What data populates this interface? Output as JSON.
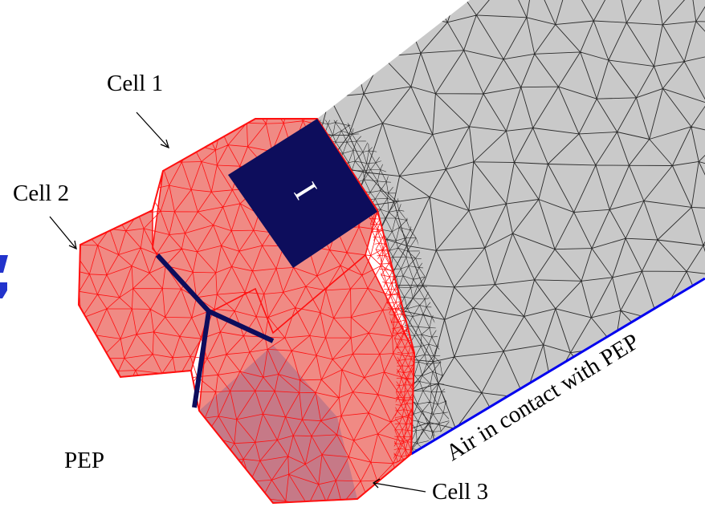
{
  "labels": {
    "cell1": "Cell 1",
    "cell2": "Cell 2",
    "cell3": "Cell 3",
    "pep": "PEP",
    "air": "Air in contact with PEP",
    "face_marker": "I"
  },
  "colors": {
    "background": "#ffffff",
    "air_mesh_fill": "#c9c9c9",
    "air_mesh_lines": "#2a2a2a",
    "cell_fill": "#f08a84",
    "cell_mesh_lines": "#ff1010",
    "marker_face": "#0d0d5c",
    "interface_lines": "#0d0d5c",
    "boundary_line": "#0000ee",
    "label_text": "#000000",
    "marker_text": "#ffffff",
    "edge_glyph": "#2233cc"
  }
}
